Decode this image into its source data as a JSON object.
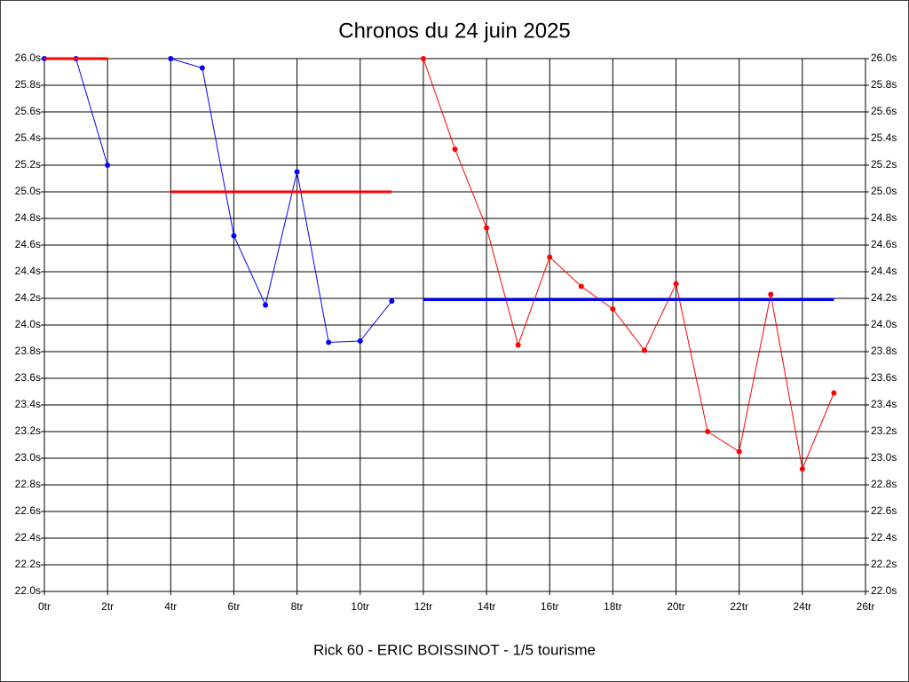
{
  "chart_data": {
    "type": "line",
    "title": "Chronos du 24 juin 2025",
    "xlabel": "Rick 60 - ERIC BOISSINOT - 1/5 tourisme",
    "xlim": [
      0,
      26
    ],
    "xticks": [
      {
        "value": 0,
        "label": "0tr"
      },
      {
        "value": 2,
        "label": "2tr"
      },
      {
        "value": 4,
        "label": "4tr"
      },
      {
        "value": 6,
        "label": "6tr"
      },
      {
        "value": 8,
        "label": "8tr"
      },
      {
        "value": 10,
        "label": "10tr"
      },
      {
        "value": 12,
        "label": "12tr"
      },
      {
        "value": 14,
        "label": "14tr"
      },
      {
        "value": 16,
        "label": "16tr"
      },
      {
        "value": 18,
        "label": "18tr"
      },
      {
        "value": 20,
        "label": "20tr"
      },
      {
        "value": 22,
        "label": "22tr"
      },
      {
        "value": 24,
        "label": "24tr"
      },
      {
        "value": 26,
        "label": "26tr"
      }
    ],
    "ylim": [
      22.0,
      26.0
    ],
    "yticks": [
      {
        "value": 22.0,
        "label": "22.0s"
      },
      {
        "value": 22.2,
        "label": "22.2s"
      },
      {
        "value": 22.4,
        "label": "22.4s"
      },
      {
        "value": 22.6,
        "label": "22.6s"
      },
      {
        "value": 22.8,
        "label": "22.8s"
      },
      {
        "value": 23.0,
        "label": "23.0s"
      },
      {
        "value": 23.2,
        "label": "23.2s"
      },
      {
        "value": 23.4,
        "label": "23.4s"
      },
      {
        "value": 23.6,
        "label": "23.6s"
      },
      {
        "value": 23.8,
        "label": "23.8s"
      },
      {
        "value": 24.0,
        "label": "24.0s"
      },
      {
        "value": 24.2,
        "label": "24.2s"
      },
      {
        "value": 24.4,
        "label": "24.4s"
      },
      {
        "value": 24.6,
        "label": "24.6s"
      },
      {
        "value": 24.8,
        "label": "24.8s"
      },
      {
        "value": 25.0,
        "label": "25.0s"
      },
      {
        "value": 25.2,
        "label": "25.2s"
      },
      {
        "value": 25.4,
        "label": "25.4s"
      },
      {
        "value": 25.6,
        "label": "25.6s"
      },
      {
        "value": 25.8,
        "label": "25.8s"
      },
      {
        "value": 26.0,
        "label": "26.0s"
      }
    ],
    "grid": true,
    "series": [
      {
        "color": "#0000ff",
        "markers": true,
        "x": [
          0,
          1,
          2,
          3,
          4,
          5,
          6,
          7,
          8,
          9,
          10,
          11
        ],
        "values": [
          26.0,
          26.0,
          25.2,
          null,
          26.0,
          25.93,
          24.67,
          24.15,
          25.15,
          23.87,
          23.88,
          24.18
        ]
      },
      {
        "color": "#ff0000",
        "markers": true,
        "x": [
          12,
          13,
          14,
          15,
          16,
          17,
          18,
          19,
          20,
          21,
          22,
          23,
          24,
          25
        ],
        "values": [
          26.0,
          25.32,
          24.73,
          23.85,
          24.51,
          24.29,
          24.12,
          23.81,
          24.31,
          23.2,
          23.05,
          24.23,
          22.92,
          23.49
        ]
      },
      {
        "color": "#ff0000",
        "markers": false,
        "x": [
          0,
          2
        ],
        "values": [
          26.0,
          26.0
        ]
      },
      {
        "color": "#ff0000",
        "markers": false,
        "x": [
          4,
          11
        ],
        "values": [
          25.0,
          25.0
        ]
      },
      {
        "color": "#0000ff",
        "markers": false,
        "x": [
          12,
          25
        ],
        "values": [
          24.19,
          24.19
        ]
      }
    ]
  }
}
